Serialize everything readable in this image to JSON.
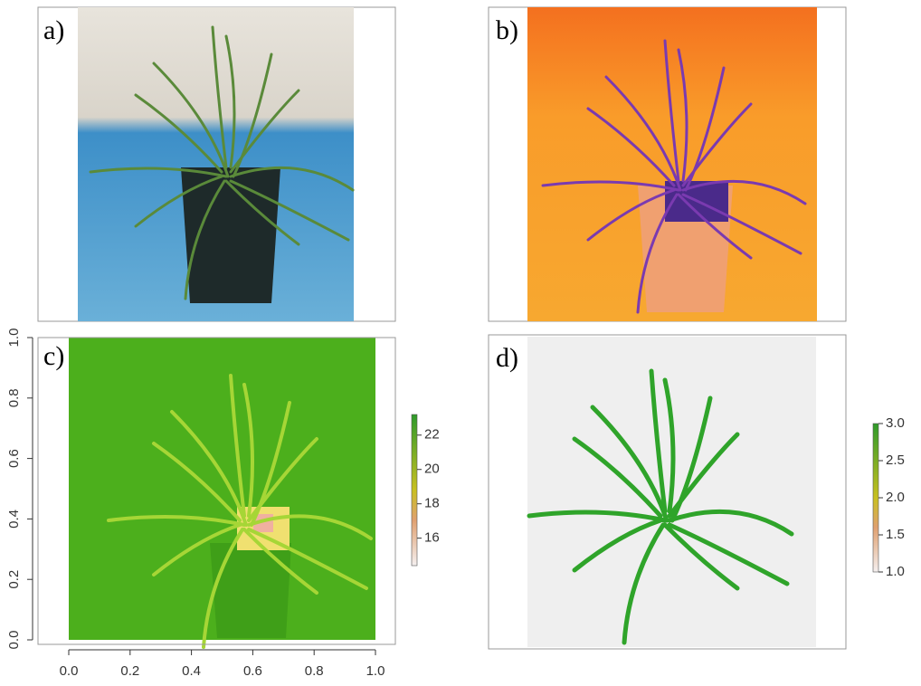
{
  "panels": [
    {
      "label": "a)"
    },
    {
      "label": "b)"
    }
  ],
  "chart_data": [
    {
      "type": "raster",
      "panel_label": "c)",
      "xlim": [
        0,
        1
      ],
      "ylim": [
        0,
        1
      ],
      "xticks": [
        {
          "value": 0,
          "label": "0.0"
        },
        {
          "value": 0.2,
          "label": "0.2"
        },
        {
          "value": 0.4,
          "label": "0.4"
        },
        {
          "value": 0.6,
          "label": "0.6"
        },
        {
          "value": 0.8,
          "label": "0.8"
        },
        {
          "value": 1,
          "label": "1.0"
        }
      ],
      "yticks": [
        {
          "value": 0,
          "label": "0.0"
        },
        {
          "value": 0.2,
          "label": "0.2"
        },
        {
          "value": 0.4,
          "label": "0.4"
        },
        {
          "value": 0.6,
          "label": "0.6"
        },
        {
          "value": 0.8,
          "label": "0.8"
        },
        {
          "value": 1,
          "label": "1.0"
        }
      ],
      "colorbar": {
        "lim": [
          14.4,
          23.2
        ],
        "ticks": [
          16,
          18,
          20,
          22
        ]
      }
    },
    {
      "type": "raster",
      "panel_label": "d)",
      "colorbar": {
        "lim": [
          1,
          3
        ],
        "ticks": [
          {
            "value": 1,
            "label": "1.0"
          },
          {
            "value": 1.5,
            "label": "1.5"
          },
          {
            "value": 2,
            "label": "2.0"
          },
          {
            "value": 2.5,
            "label": "2.5"
          },
          {
            "value": 3,
            "label": "3.0"
          }
        ]
      }
    }
  ]
}
